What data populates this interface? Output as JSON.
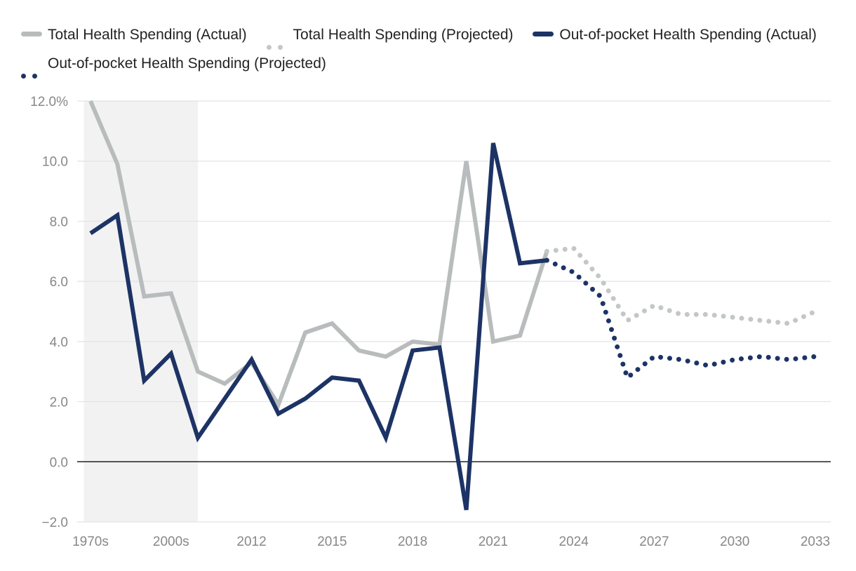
{
  "colors": {
    "total": "#b9bcbd",
    "oop": "#1d3365",
    "grid": "#e3e3e3",
    "zero": "#222222",
    "shade": "#f2f2f2"
  },
  "legend": [
    {
      "label": "Total Health Spending (Actual)",
      "series": "total_actual"
    },
    {
      "label": "Total Health Spending (Projected)",
      "series": "total_projected"
    },
    {
      "label": "Out-of-pocket Health Spending (Actual)",
      "series": "oop_actual"
    },
    {
      "label": "Out-of-pocket Health Spending (Projected)",
      "series": "oop_projected"
    }
  ],
  "chart_data": {
    "type": "line",
    "title": "",
    "xlabel": "",
    "ylabel": "",
    "ylim": [
      -2,
      12
    ],
    "yticks": [
      -2,
      0,
      2,
      4,
      6,
      8,
      10,
      12
    ],
    "ytick_labels": [
      "−2.0",
      "0.0",
      "2.0",
      "4.0",
      "6.0",
      "8.0",
      "10.0",
      "12.0%"
    ],
    "x_index_range": [
      0,
      27
    ],
    "xticks": [
      {
        "index": 0,
        "label": "1970s"
      },
      {
        "index": 3,
        "label": "2000s"
      },
      {
        "index": 6,
        "label": "2012"
      },
      {
        "index": 9,
        "label": "2015"
      },
      {
        "index": 12,
        "label": "2018"
      },
      {
        "index": 15,
        "label": "2021"
      },
      {
        "index": 18,
        "label": "2024"
      },
      {
        "index": 21,
        "label": "2027"
      },
      {
        "index": 24,
        "label": "2030"
      },
      {
        "index": 27,
        "label": "2033"
      }
    ],
    "shaded_region": [
      -0.25,
      4.0
    ],
    "series": [
      {
        "name": "Total Health Spending (Actual)",
        "key": "total_actual",
        "style": "solid",
        "x": [
          0,
          1,
          2,
          3,
          4,
          5,
          6,
          7,
          8,
          9,
          10,
          11,
          12,
          13,
          14,
          15,
          16,
          17
        ],
        "values": [
          12.0,
          9.9,
          5.5,
          5.6,
          3.0,
          2.6,
          3.3,
          1.9,
          4.3,
          4.6,
          3.7,
          3.5,
          4.0,
          3.9,
          10.0,
          4.0,
          4.2,
          7.0
        ]
      },
      {
        "name": "Total Health Spending (Projected)",
        "key": "total_projected",
        "style": "dotted",
        "x": [
          17,
          18,
          19,
          20,
          21,
          22,
          23,
          24,
          25,
          26,
          27
        ],
        "values": [
          7.0,
          7.1,
          6.1,
          4.7,
          5.2,
          4.9,
          4.9,
          4.8,
          4.7,
          4.6,
          5.0
        ]
      },
      {
        "name": "Out-of-pocket Health Spending (Actual)",
        "key": "oop_actual",
        "style": "solid",
        "x": [
          0,
          1,
          2,
          3,
          4,
          5,
          6,
          7,
          8,
          9,
          10,
          11,
          12,
          13,
          14,
          15,
          16,
          17
        ],
        "values": [
          7.6,
          8.2,
          2.7,
          3.6,
          0.8,
          2.1,
          3.4,
          1.6,
          2.1,
          2.8,
          2.7,
          0.8,
          3.7,
          3.8,
          -1.6,
          10.6,
          6.6,
          6.7
        ]
      },
      {
        "name": "Out-of-pocket Health Spending (Projected)",
        "key": "oop_projected",
        "style": "dotted",
        "x": [
          17,
          18,
          19,
          20,
          21,
          22,
          23,
          24,
          25,
          26,
          27
        ],
        "values": [
          6.7,
          6.3,
          5.5,
          2.8,
          3.5,
          3.4,
          3.2,
          3.4,
          3.5,
          3.4,
          3.5
        ]
      }
    ]
  }
}
